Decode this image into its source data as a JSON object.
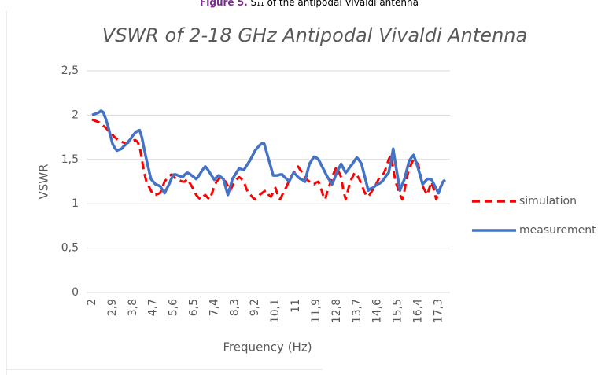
{
  "caption": {
    "label": "Figure 5.",
    "text": "S₁₁ of the antipodal Vivaldi antenna"
  },
  "chart_data": {
    "type": "line",
    "title": "VSWR of 2-18 GHz Antipodal Vivaldi Antenna",
    "x_label": "Frequency (Hz)",
    "y_label": "VSWR",
    "ylim": [
      0,
      2.5
    ],
    "yticks": [
      0,
      {
        "value": 0.5,
        "label": "0,5"
      },
      1,
      {
        "value": 1.5,
        "label": "1,5"
      },
      2,
      {
        "value": 2.5,
        "label": "2,5"
      }
    ],
    "grid": true,
    "legend": "right",
    "categories": [
      "2",
      null,
      null,
      null,
      null,
      null,
      null,
      null,
      null,
      "2,9",
      null,
      null,
      null,
      null,
      null,
      null,
      null,
      null,
      "3,8",
      null,
      null,
      null,
      null,
      null,
      null,
      null,
      null,
      "4,7",
      null,
      null,
      null,
      null,
      null,
      null,
      null,
      null,
      "5,6",
      null,
      null,
      null,
      null,
      null,
      null,
      null,
      null,
      "6,5",
      null,
      null,
      null,
      null,
      null,
      null,
      null,
      null,
      "7,4",
      null,
      null,
      null,
      null,
      null,
      null,
      null,
      null,
      "8,3",
      null,
      null,
      null,
      null,
      null,
      null,
      null,
      null,
      "9,2",
      null,
      null,
      null,
      null,
      null,
      null,
      null,
      null,
      "10,1",
      null,
      null,
      null,
      null,
      null,
      null,
      null,
      null,
      "11",
      null,
      null,
      null,
      null,
      null,
      null,
      null,
      null,
      "11,9",
      null,
      null,
      null,
      null,
      null,
      null,
      null,
      null,
      "12,8",
      null,
      null,
      null,
      null,
      null,
      null,
      null,
      null,
      "13,7",
      null,
      null,
      null,
      null,
      null,
      null,
      null,
      null,
      "14,6",
      null,
      null,
      null,
      null,
      null,
      null,
      null,
      null,
      "15,5",
      null,
      null,
      null,
      null,
      null,
      null,
      null,
      null,
      "16,4",
      null,
      null,
      null,
      null,
      null,
      null,
      null,
      null,
      "17,3",
      null,
      null,
      null
    ],
    "series": [
      {
        "name": "simulation",
        "color": "#ff0000",
        "dashed": true,
        "values": [
          1.95,
          1.94,
          1.93,
          1.92,
          1.9,
          1.88,
          1.86,
          1.83,
          1.8,
          1.78,
          1.75,
          1.73,
          1.71,
          1.7,
          1.69,
          1.68,
          1.69,
          1.7,
          1.71,
          1.72,
          1.7,
          1.65,
          1.5,
          1.35,
          1.25,
          1.2,
          1.15,
          1.1,
          1.1,
          1.11,
          1.12,
          1.18,
          1.25,
          1.28,
          1.31,
          1.33,
          1.31,
          1.28,
          1.27,
          1.26,
          1.25,
          1.25,
          1.28,
          1.24,
          1.2,
          1.15,
          1.1,
          1.07,
          1.05,
          1.08,
          1.1,
          1.07,
          1.05,
          1.12,
          1.2,
          1.25,
          1.28,
          1.3,
          1.27,
          1.25,
          1.2,
          1.15,
          1.2,
          1.25,
          1.28,
          1.3,
          1.28,
          1.25,
          1.18,
          1.12,
          1.1,
          1.07,
          1.05,
          1.07,
          1.1,
          1.12,
          1.14,
          1.15,
          1.1,
          1.08,
          1.13,
          1.18,
          1.1,
          1.05,
          1.1,
          1.15,
          1.2,
          1.26,
          1.31,
          1.35,
          1.39,
          1.42,
          1.38,
          1.35,
          1.3,
          1.27,
          1.25,
          1.23,
          1.22,
          1.24,
          1.25,
          1.18,
          1.1,
          1.05,
          1.15,
          1.22,
          1.3,
          1.36,
          1.42,
          1.36,
          1.3,
          1.15,
          1.05,
          1.15,
          1.25,
          1.3,
          1.35,
          1.32,
          1.28,
          1.22,
          1.15,
          1.1,
          1.08,
          1.12,
          1.16,
          1.2,
          1.25,
          1.3,
          1.32,
          1.35,
          1.42,
          1.5,
          1.55,
          1.4,
          1.25,
          1.18,
          1.1,
          1.05,
          1.15,
          1.3,
          1.38,
          1.45,
          1.5,
          1.47,
          1.45,
          1.33,
          1.2,
          1.15,
          1.1,
          1.18,
          1.25,
          1.15,
          1.05,
          1.12,
          1.2,
          1.22,
          1.25
        ]
      },
      {
        "name": "measurement",
        "color": "#4472c4",
        "dashed": false,
        "values": [
          2.0,
          2.01,
          2.02,
          2.03,
          2.05,
          2.03,
          1.96,
          1.88,
          1.78,
          1.68,
          1.63,
          1.6,
          1.61,
          1.62,
          1.65,
          1.67,
          1.7,
          1.73,
          1.77,
          1.8,
          1.82,
          1.83,
          1.75,
          1.62,
          1.5,
          1.39,
          1.28,
          1.25,
          1.22,
          1.21,
          1.2,
          1.16,
          1.12,
          1.17,
          1.22,
          1.28,
          1.33,
          1.33,
          1.32,
          1.31,
          1.3,
          1.33,
          1.35,
          1.34,
          1.32,
          1.3,
          1.28,
          1.31,
          1.35,
          1.39,
          1.42,
          1.39,
          1.35,
          1.31,
          1.27,
          1.3,
          1.32,
          1.3,
          1.28,
          1.19,
          1.1,
          1.19,
          1.28,
          1.32,
          1.36,
          1.4,
          1.39,
          1.38,
          1.42,
          1.46,
          1.5,
          1.55,
          1.6,
          1.63,
          1.66,
          1.68,
          1.68,
          1.59,
          1.5,
          1.41,
          1.32,
          1.32,
          1.32,
          1.33,
          1.33,
          1.3,
          1.28,
          1.25,
          1.3,
          1.35,
          1.33,
          1.3,
          1.28,
          1.27,
          1.25,
          1.35,
          1.45,
          1.49,
          1.53,
          1.52,
          1.5,
          1.45,
          1.4,
          1.35,
          1.3,
          1.26,
          1.22,
          1.28,
          1.35,
          1.4,
          1.45,
          1.4,
          1.35,
          1.38,
          1.42,
          1.45,
          1.49,
          1.52,
          1.49,
          1.45,
          1.35,
          1.25,
          1.15,
          1.17,
          1.18,
          1.2,
          1.22,
          1.23,
          1.25,
          1.28,
          1.32,
          1.35,
          1.48,
          1.62,
          1.45,
          1.3,
          1.15,
          1.22,
          1.28,
          1.38,
          1.48,
          1.52,
          1.55,
          1.48,
          1.4,
          1.31,
          1.22,
          1.25,
          1.28,
          1.28,
          1.27,
          1.22,
          1.17,
          1.12,
          1.19,
          1.25,
          1.27
        ]
      }
    ]
  }
}
